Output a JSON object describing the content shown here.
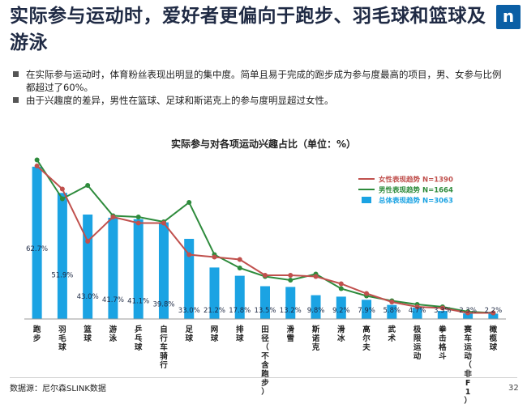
{
  "slide": {
    "title": "实际参与运动时，爱好者更偏向于跑步、羽毛球和篮球及游泳",
    "logo_text": "n",
    "bullets": [
      "在实际参与运动时，体育粉丝表现出明显的集中度。简单且易于完成的跑步成为参与度最高的项目，男、女参与比例都超过了60%。",
      "由于兴趣度的差异，男性在篮球、足球和斯诺克上的参与度明显超过女性。"
    ],
    "source": "数据源：尼尔森SLINK数据",
    "page_number": "32"
  },
  "colors": {
    "bar": "#1ba3e3",
    "female": "#c0504d",
    "male": "#2e8b3c",
    "title": "#1f2a44",
    "logo": "#0b5fa5"
  },
  "chart_data": {
    "type": "bar",
    "title": "实际参与对各项运动兴趣占比（单位：%）",
    "categories": [
      "跑步",
      "羽毛球",
      "篮球",
      "游泳",
      "乒乓球",
      "自行车/骑行",
      "足球",
      "网球",
      "排球",
      "田径（不含跑步）",
      "滑雪",
      "斯诺克",
      "滑冰",
      "高尔夫",
      "武术",
      "极限运动",
      "拳击/格斗",
      "赛车运动（非F1）",
      "橄榄球"
    ],
    "category_labels": [
      "跑步",
      "羽毛球",
      "篮球",
      "游泳",
      "乒乓球",
      "自行车骑行",
      "足球",
      "网球",
      "排球",
      "田径（不含跑步）",
      "滑雪",
      "斯诺克",
      "滑冰",
      "高尔夫",
      "武术",
      "极限运动",
      "拳击格斗",
      "赛车运动（非F1）",
      "橄榄球"
    ],
    "series": [
      {
        "name": "总体表现趋势 N=3063",
        "kind": "bar",
        "values": [
          62.7,
          51.9,
          43.0,
          41.7,
          41.1,
          39.8,
          33.0,
          21.2,
          17.8,
          13.5,
          13.2,
          9.8,
          9.2,
          7.9,
          5.8,
          4.7,
          3.3,
          2.3,
          2.2
        ],
        "labels": [
          "62.7%",
          "51.9%",
          "43.0%",
          "41.7%",
          "41.1%",
          "39.8%",
          "33.0%",
          "21.2%",
          "17.8%",
          "13.5%",
          "13.2%",
          "9.8%",
          "9.2%",
          "7.9%",
          "5.8%",
          "4.7%",
          "3.3%",
          "2.3%",
          "2.2%"
        ]
      },
      {
        "name": "女性表现趋势 N=1390",
        "kind": "line",
        "values": [
          63.0,
          53.5,
          32.0,
          42.0,
          39.5,
          39.5,
          26.5,
          25.5,
          24.5,
          18.0,
          18.0,
          17.5,
          14.5,
          10.5,
          7.0,
          5.0,
          4.5,
          2.5,
          2.5
        ]
      },
      {
        "name": "男性表现趋势 N=1664",
        "kind": "line",
        "values": [
          65.5,
          49.5,
          55.0,
          42.5,
          42.0,
          40.0,
          48.0,
          26.5,
          21.0,
          17.5,
          16.0,
          18.5,
          12.5,
          9.5,
          7.5,
          6.0,
          5.0,
          3.0,
          2.5
        ]
      }
    ],
    "legend": [
      "女性表现趋势 N=1390",
      "男性表现趋势 N=1664",
      "总体表现趋势 N=3063"
    ],
    "legend_position": "top-right",
    "ylim": [
      0,
      70
    ],
    "xlabel": "",
    "ylabel": ""
  }
}
